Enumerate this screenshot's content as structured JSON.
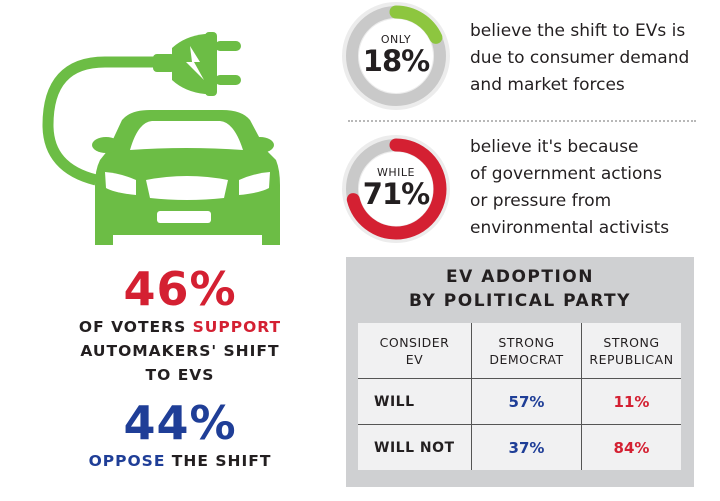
{
  "colors": {
    "green": "#6cbd45",
    "red": "#d42032",
    "blue": "#1f3e97",
    "ring_gray": "#c9c9c9",
    "panel_gray": "#cfd0d2"
  },
  "icon": "electric-car-plug-icon",
  "support": {
    "percent": "46%",
    "line1_a": "OF VOTERS ",
    "line1_b": "SUPPORT",
    "line2": "AUTOMAKERS' SHIFT",
    "line3": "TO EVS"
  },
  "oppose": {
    "percent": "44%",
    "word": "OPPOSE",
    "rest": " THE SHIFT"
  },
  "donuts": [
    {
      "prefix": "ONLY",
      "percent": "18%",
      "value": 18,
      "color": "#8dc63f",
      "lines": [
        "believe the shift to EVs is",
        "due to consumer demand",
        "and market forces"
      ]
    },
    {
      "prefix": "WHILE",
      "percent": "71%",
      "value": 71,
      "color": "#d42032",
      "lines": [
        "believe it's because",
        "of government actions",
        "or pressure from",
        "environmental activists"
      ]
    }
  ],
  "table": {
    "title1": "EV ADOPTION",
    "title2": "BY POLITICAL PARTY",
    "headers": [
      [
        "CONSIDER",
        "EV"
      ],
      [
        "STRONG",
        "DEMOCRAT"
      ],
      [
        "STRONG",
        "REPUBLICAN"
      ]
    ],
    "rows": [
      {
        "label": "WILL",
        "democrat": "57%",
        "republican": "11%"
      },
      {
        "label": "WILL NOT",
        "democrat": "37%",
        "republican": "84%"
      }
    ]
  }
}
